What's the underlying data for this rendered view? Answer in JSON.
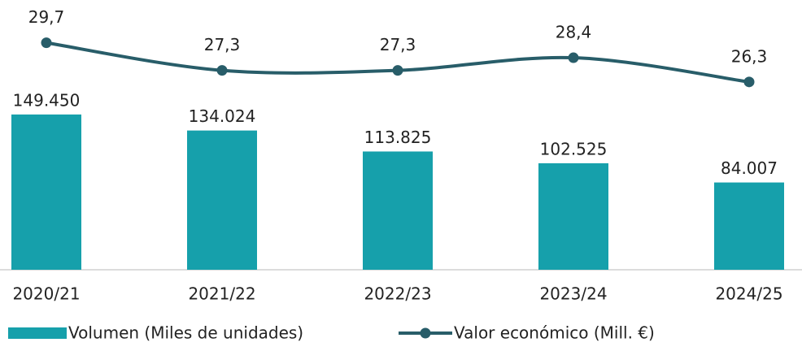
{
  "chart_data": {
    "type": "bar",
    "categories": [
      "2020/21",
      "2021/22",
      "2022/23",
      "2023/24",
      "2024/25"
    ],
    "series": [
      {
        "name": "Volumen (Miles de unidades)",
        "type": "bar",
        "color": "#16a0ab",
        "values": [
          149450,
          134024,
          113825,
          102525,
          84007
        ],
        "value_labels": [
          "149.450",
          "134.024",
          "113.825",
          "102.525",
          "84.007"
        ]
      },
      {
        "name": "Valor económico (Mill. €)",
        "type": "line",
        "axis": "y2",
        "color": "#285d69",
        "values": [
          29.7,
          27.3,
          27.3,
          28.4,
          26.3
        ],
        "value_labels": [
          "29,7",
          "27,3",
          "27,3",
          "28,4",
          "26,3"
        ]
      }
    ],
    "ylim": [
      0,
      244000
    ],
    "y2lim": [
      10,
      32
    ],
    "legend": "bottom"
  }
}
